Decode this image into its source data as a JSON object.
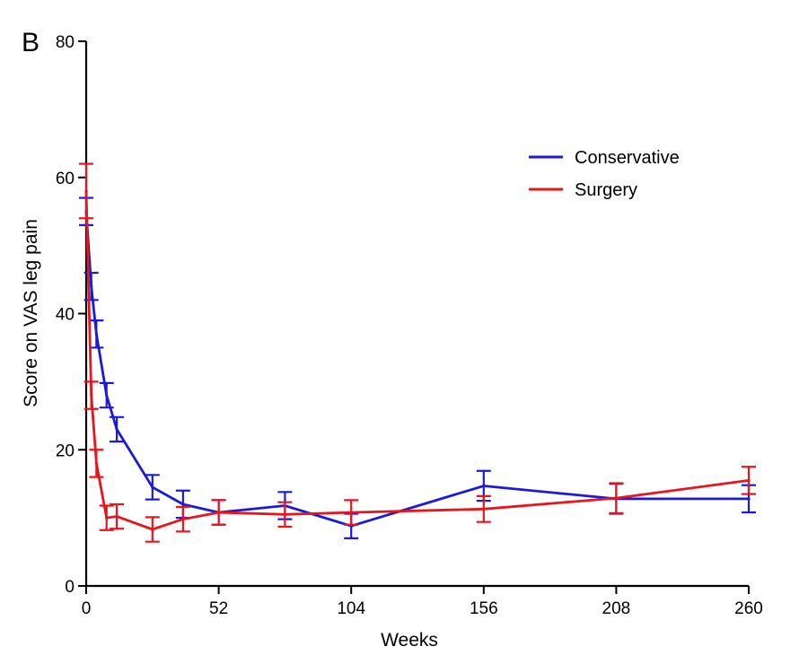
{
  "panel_label": "B",
  "chart_data": {
    "type": "line",
    "xlabel": "Weeks",
    "ylabel": "Score on VAS leg pain",
    "xlim": [
      0,
      260
    ],
    "ylim": [
      0,
      80
    ],
    "xticks": [
      0,
      52,
      104,
      156,
      208,
      260
    ],
    "yticks": [
      0,
      20,
      40,
      60,
      80
    ],
    "legend_position": "top-right",
    "grid": false,
    "series": [
      {
        "name": "Conservative",
        "color": "#1a1adc",
        "x": [
          0,
          2,
          4,
          8,
          12,
          26,
          38,
          52,
          78,
          104,
          156,
          208,
          260
        ],
        "y": [
          55,
          44,
          37,
          28,
          23,
          14.5,
          12,
          10.8,
          11.8,
          8.8,
          14.7,
          12.8,
          12.8
        ],
        "err": [
          2,
          2,
          2,
          1.8,
          1.8,
          1.8,
          2,
          1.8,
          2,
          1.8,
          2.2,
          2.2,
          2
        ]
      },
      {
        "name": "Surgery",
        "color": "#e8151c",
        "x": [
          0,
          2,
          4,
          8,
          12,
          26,
          38,
          52,
          78,
          104,
          156,
          208,
          260
        ],
        "y": [
          58,
          28,
          18,
          10,
          10.2,
          8.3,
          9.8,
          10.8,
          10.5,
          10.8,
          11.3,
          12.9,
          15.5
        ],
        "err": [
          4,
          2,
          2,
          1.8,
          1.8,
          1.8,
          1.8,
          1.8,
          1.8,
          1.8,
          1.9,
          2.2,
          2
        ]
      }
    ]
  }
}
